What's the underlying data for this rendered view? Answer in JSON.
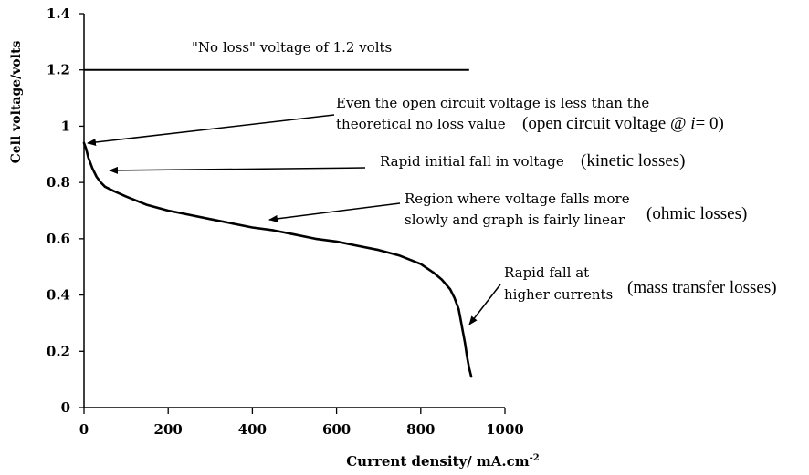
{
  "chart_data": {
    "type": "line",
    "title": "",
    "xlabel": "Current density/ mA.cm",
    "xlabel_sup": "-2",
    "ylabel": "Cell voltage/volts",
    "xlim": [
      0,
      1000
    ],
    "ylim": [
      0,
      1.4
    ],
    "x_ticks": [
      0,
      200,
      400,
      600,
      800,
      1000
    ],
    "x_tick_labels": [
      "0",
      "200",
      "400",
      "600",
      "800",
      "1000"
    ],
    "y_ticks": [
      0,
      0.2,
      0.4,
      0.6,
      0.8,
      1,
      1.2,
      1.4
    ],
    "y_tick_labels": [
      "0",
      "0.2",
      "0.4",
      "0.6",
      "0.8",
      "1",
      "1.2",
      "1.4"
    ],
    "grid": false,
    "reference_line": {
      "y": 1.2,
      "x_range": [
        0,
        915
      ]
    },
    "series": [
      {
        "x": [
          0,
          5,
          10,
          20,
          30,
          40,
          50,
          70,
          100,
          150,
          200,
          250,
          300,
          350,
          400,
          450,
          500,
          550,
          600,
          650,
          700,
          750,
          800,
          830,
          850,
          870,
          880,
          890,
          895,
          900,
          905,
          910,
          915,
          920
        ],
        "values": [
          0.94,
          0.92,
          0.89,
          0.85,
          0.82,
          0.8,
          0.785,
          0.77,
          0.75,
          0.72,
          0.7,
          0.685,
          0.67,
          0.655,
          0.64,
          0.63,
          0.615,
          0.6,
          0.59,
          0.575,
          0.56,
          0.54,
          0.51,
          0.48,
          0.455,
          0.42,
          0.39,
          0.35,
          0.31,
          0.27,
          0.23,
          0.18,
          0.14,
          0.11
        ]
      }
    ],
    "annotations": [
      {
        "id": "no-loss",
        "text": "\"No loss\" voltage of 1.2 volts"
      },
      {
        "id": "ocv-line1",
        "text": "Even the open circuit voltage is less than the"
      },
      {
        "id": "ocv-line2",
        "text": "theoretical no loss value"
      },
      {
        "id": "ocv-note",
        "text": "(open circuit voltage @ i= 0)",
        "parts": [
          "(open circuit voltage @ ",
          "i",
          "= 0)"
        ]
      },
      {
        "id": "rapid-initial",
        "text": "Rapid initial fall in voltage"
      },
      {
        "id": "kinetic-note",
        "text": "(kinetic losses)"
      },
      {
        "id": "linear-line1",
        "text": "Region where voltage falls more"
      },
      {
        "id": "linear-line2",
        "text": "slowly and graph is fairly linear"
      },
      {
        "id": "ohmic-note",
        "text": "(ohmic losses)"
      },
      {
        "id": "rapid-high-line1",
        "text": "Rapid fall at"
      },
      {
        "id": "rapid-high-line2",
        "text": "higher currents"
      },
      {
        "id": "mass-note",
        "text": "(mass transfer losses)"
      }
    ]
  }
}
